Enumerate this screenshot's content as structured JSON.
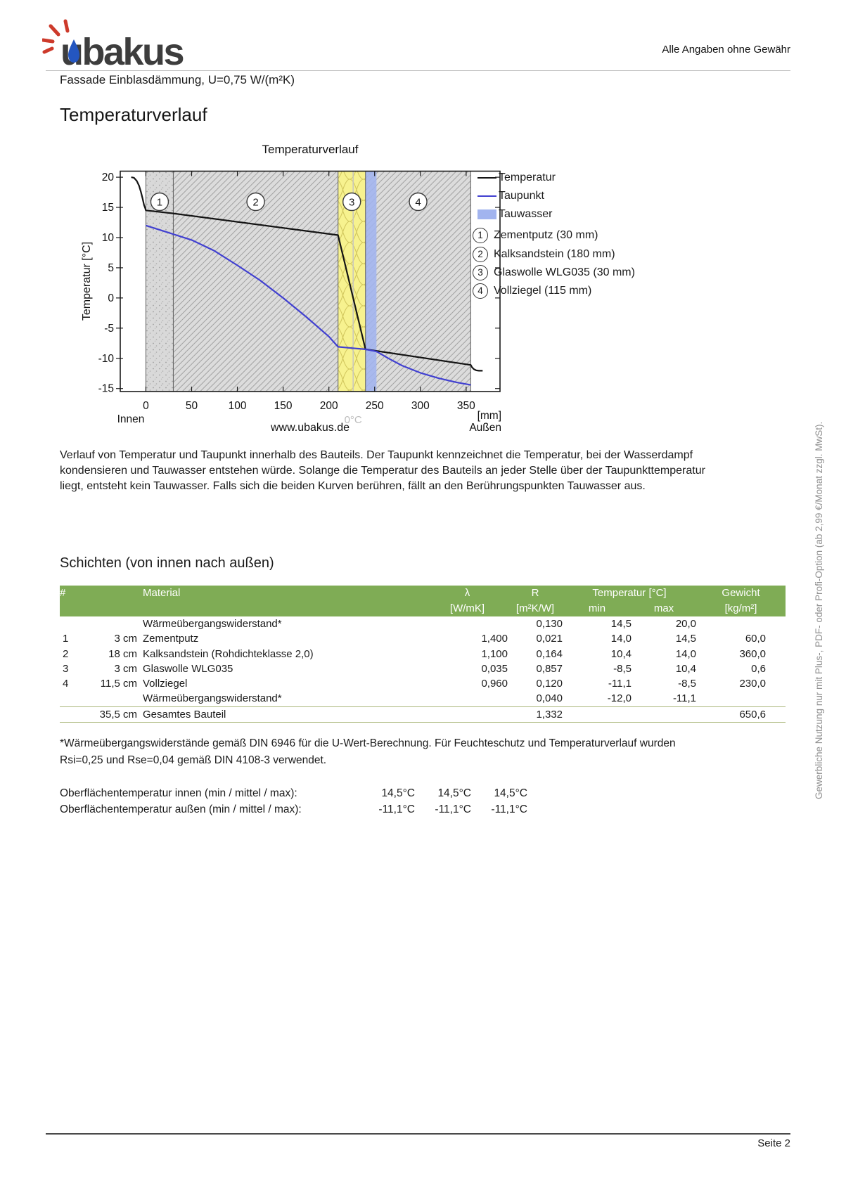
{
  "page": {
    "brand": "ubakus",
    "disclaimer": "Alle Angaben ohne Gewähr",
    "subtitle": "Fassade Einblasdämmung, U=0,75 W/(m²K)",
    "heading": "Temperaturverlauf",
    "page_label": "Seite 2",
    "watermark": "Gewerbliche Nutzung nur mit Plus-, PDF- oder Profi-Option (ab 2,99 €/Monat zzgl. MwSt)."
  },
  "description": "Verlauf von Temperatur und Taupunkt innerhalb des Bauteils. Der Taupunkt kennzeichnet die Temperatur, bei der Wasserdampf kondensieren und Tauwasser entstehen würde. Solange die Temperatur des Bauteils an jeder Stelle über der Taupunkttemperatur liegt, entsteht kein Tauwasser. Falls sich die beiden Kurven berühren, fällt an den Berührungspunkten Tauwasser aus.",
  "chart_data": {
    "type": "line",
    "title": "Temperaturverlauf",
    "xlabel": "[mm]",
    "ylabel": "Temperatur [°C]",
    "x_ticks": [
      0,
      50,
      100,
      150,
      200,
      250,
      300,
      350
    ],
    "y_ticks": [
      20,
      15,
      10,
      5,
      0,
      -5,
      -10,
      -15
    ],
    "xlim": [
      -28,
      387
    ],
    "ylim": [
      -15.5,
      21
    ],
    "left_label": "Innen",
    "right_label": "Außen",
    "site_label": "www.ubakus.de",
    "zero_marker": {
      "x": 226.5,
      "label": "0°C"
    },
    "tauwasser_band": {
      "from": 240,
      "to": 252
    },
    "layers": [
      {
        "n": "1",
        "label": "Zementputz (30 mm)",
        "from": 0,
        "to": 30,
        "texture": "stipple"
      },
      {
        "n": "2",
        "label": "Kalksandstein (180 mm)",
        "from": 30,
        "to": 210,
        "texture": "hatch"
      },
      {
        "n": "3",
        "label": "Glaswolle WLG035 (30 mm)",
        "from": 210,
        "to": 240,
        "texture": "insulation"
      },
      {
        "n": "4",
        "label": "Vollziegel (115 mm)",
        "from": 240,
        "to": 355,
        "texture": "hatch"
      }
    ],
    "legend": [
      {
        "label": "Temperatur",
        "type": "line",
        "color": "#141414"
      },
      {
        "label": "Taupunkt",
        "type": "line",
        "color": "#4140d0"
      },
      {
        "label": "Tauwasser",
        "type": "box",
        "color": "#a2b4ef"
      }
    ],
    "series": [
      {
        "name": "Temperatur",
        "color": "#141414",
        "points": [
          [
            -16,
            20
          ],
          [
            -13,
            19.9
          ],
          [
            -10,
            19.4
          ],
          [
            -7.5,
            18.6
          ],
          [
            -5.5,
            17.6
          ],
          [
            -3.5,
            16.4
          ],
          [
            -2,
            15.4
          ],
          [
            -0.8,
            14.9
          ],
          [
            0,
            14.5
          ],
          [
            30,
            14.0
          ],
          [
            210,
            10.4
          ],
          [
            240,
            -8.5
          ],
          [
            355,
            -11.1
          ],
          [
            356.5,
            -11.5
          ],
          [
            358.5,
            -11.8
          ],
          [
            361,
            -12.0
          ],
          [
            364,
            -12.05
          ],
          [
            368,
            -12.05
          ]
        ]
      },
      {
        "name": "Taupunkt",
        "color": "#4140d0",
        "points": [
          [
            0,
            12
          ],
          [
            25,
            10.8
          ],
          [
            50,
            9.6
          ],
          [
            75,
            7.8
          ],
          [
            100,
            5.4
          ],
          [
            125,
            2.9
          ],
          [
            150,
            0
          ],
          [
            175,
            -3.1
          ],
          [
            200,
            -6.4
          ],
          [
            210,
            -8.1
          ],
          [
            225,
            -8.3
          ],
          [
            240,
            -8.5
          ],
          [
            252,
            -8.85
          ],
          [
            265,
            -10.0
          ],
          [
            280,
            -11.2
          ],
          [
            300,
            -12.4
          ],
          [
            320,
            -13.3
          ],
          [
            340,
            -14.0
          ],
          [
            355,
            -14.4
          ]
        ]
      }
    ]
  },
  "layers_section": {
    "title": "Schichten (von innen nach außen)",
    "table": {
      "header": {
        "num": "#",
        "material": "Material",
        "lambda": "λ",
        "lambda_unit": "[W/mK]",
        "r": "R",
        "r_unit": "[m²K/W]",
        "temp": "Temperatur [°C]",
        "min": "min",
        "max": "max",
        "weight": "Gewicht",
        "weight_unit": "[kg/m²]"
      },
      "rows": [
        {
          "num": "",
          "thick": "",
          "material": "Wärmeübergangswiderstand*",
          "lambda": "",
          "r": "0,130",
          "min": "14,5",
          "max": "20,0",
          "weight": ""
        },
        {
          "num": "1",
          "thick": "3 cm",
          "material": "Zementputz",
          "lambda": "1,400",
          "r": "0,021",
          "min": "14,0",
          "max": "14,5",
          "weight": "60,0"
        },
        {
          "num": "2",
          "thick": "18 cm",
          "material": "Kalksandstein (Rohdichteklasse 2,0)",
          "lambda": "1,100",
          "r": "0,164",
          "min": "10,4",
          "max": "14,0",
          "weight": "360,0"
        },
        {
          "num": "3",
          "thick": "3 cm",
          "material": "Glaswolle WLG035",
          "lambda": "0,035",
          "r": "0,857",
          "min": "-8,5",
          "max": "10,4",
          "weight": "0,6"
        },
        {
          "num": "4",
          "thick": "11,5 cm",
          "material": "Vollziegel",
          "lambda": "0,960",
          "r": "0,120",
          "min": "-11,1",
          "max": "-8,5",
          "weight": "230,0"
        },
        {
          "num": "",
          "thick": "",
          "material": "Wärmeübergangswiderstand*",
          "lambda": "",
          "r": "0,040",
          "min": "-12,0",
          "max": "-11,1",
          "weight": ""
        }
      ],
      "total": {
        "num": "",
        "thick": "35,5 cm",
        "material": "Gesamtes Bauteil",
        "lambda": "",
        "r": "1,332",
        "min": "",
        "max": "",
        "weight": "650,6"
      }
    },
    "footnote": "*Wärmeübergangswiderstände gemäß DIN 6946 für die U-Wert-Berechnung. Für Feuchteschutz und Temperaturverlauf wurden Rsi=0,25 und Rse=0,04 gemäß DIN 4108-3 verwendet.",
    "surface_temps": [
      {
        "label": "Oberflächentemperatur innen (min / mittel / max):",
        "values": [
          "14,5°C",
          "14,5°C",
          "14,5°C"
        ]
      },
      {
        "label": "Oberflächentemperatur außen (min / mittel / max):",
        "values": [
          "-11,1°C",
          "-11,1°C",
          "-11,1°C"
        ]
      }
    ]
  },
  "colors": {
    "accent_green": "#7fac55",
    "table_hairline": "#a9b779",
    "layer_gray": "#dcdcdc",
    "insulation_yellow": "#f7f28f",
    "tauwasser_fill": "#a2b4ef",
    "dewpoint_line": "#4140d0",
    "temperature_line": "#141414"
  }
}
